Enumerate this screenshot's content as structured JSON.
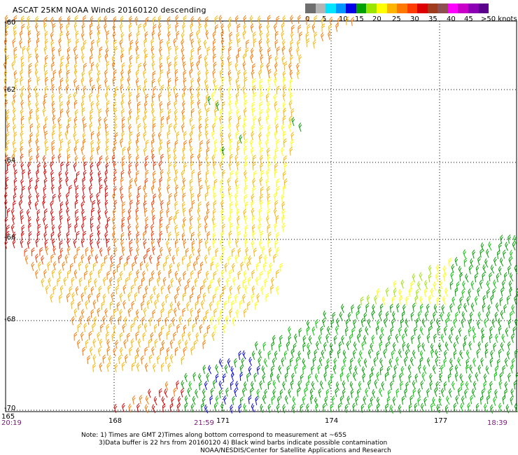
{
  "title": "ASCAT 25KM NOAA Winds 20160120 descending",
  "colorbar": {
    "colors": [
      "#6e6e6e",
      "#b4b4b4",
      "#00e4ff",
      "#0096ff",
      "#0000e6",
      "#00a000",
      "#9ae600",
      "#ffff00",
      "#ffb400",
      "#ff7800",
      "#ff3c00",
      "#dc0000",
      "#a03c1e",
      "#8c5050",
      "#ff00ff",
      "#c800c8",
      "#8c00b4",
      "#5a008c"
    ],
    "labels": [
      "0",
      "5",
      "10",
      "15",
      "20",
      "25",
      "30",
      "35",
      "40",
      "45",
      ">50 knots"
    ]
  },
  "map": {
    "lat_labels": [
      "-60",
      "-62",
      "-64",
      "-66",
      "-68",
      "-70"
    ],
    "lon_labels": [
      "165",
      "168",
      "171",
      "174",
      "177"
    ],
    "time_labels": [
      "20:19",
      "21:59",
      "18:39"
    ]
  },
  "notes": [
    "Note: 1) Times are GMT 2)Times along bottom correspond to measurement at ~65S",
    "3)Data buffer is 22 hrs from 20160120 4) Black wind barbs indicate possible contamination",
    "NOAA/NESDIS/Center for Satellite Applications and Research"
  ]
}
